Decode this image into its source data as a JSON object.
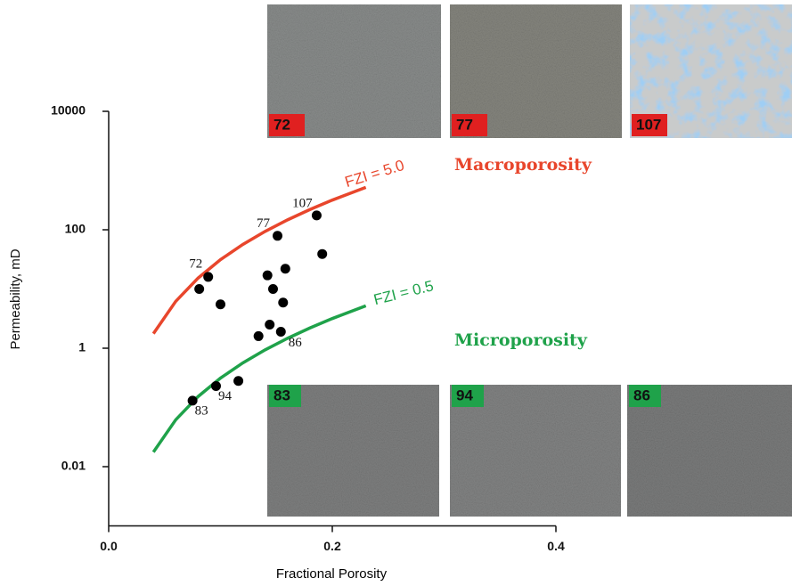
{
  "chart_data": {
    "type": "scatter",
    "xlabel": "Fractional Porosity",
    "ylabel": "Permeability, mD",
    "xlim": [
      0,
      0.4
    ],
    "xticks": [
      {
        "value": 0,
        "label": "0.0"
      },
      0.2,
      0.4
    ],
    "ylim": [
      0.001,
      10000
    ],
    "yticks": [
      0.01,
      1,
      100,
      10000
    ],
    "log_y": true,
    "points": {
      "color": "#000000",
      "x": [
        0.089,
        0.081,
        0.1,
        0.151,
        0.186,
        0.191,
        0.158,
        0.142,
        0.147,
        0.156,
        0.144,
        0.134,
        0.154,
        0.075,
        0.096,
        0.116
      ],
      "values": [
        16,
        10,
        5.5,
        79,
        175,
        39,
        22,
        17,
        10,
        5.9,
        2.5,
        1.6,
        1.9,
        0.13,
        0.23,
        0.28
      ],
      "point_labels": [
        "72",
        null,
        null,
        "77",
        "107",
        null,
        null,
        null,
        null,
        null,
        null,
        null,
        "86",
        "83",
        "94",
        null
      ]
    },
    "curves": [
      {
        "name": "FZI = 5.0",
        "color": "#e8462c",
        "x": [
          0.04,
          0.06,
          0.08,
          0.1,
          0.12,
          0.14,
          0.16,
          0.18,
          0.2,
          0.23
        ],
        "values": [
          1.76,
          6.2,
          15.3,
          31.3,
          56.6,
          94.1,
          147,
          220,
          317,
          520
        ]
      },
      {
        "name": "FZI = 0.5",
        "color": "#1fa24a",
        "x": [
          0.04,
          0.06,
          0.08,
          0.1,
          0.12,
          0.14,
          0.16,
          0.18,
          0.2,
          0.23
        ],
        "values": [
          0.0176,
          0.062,
          0.153,
          0.313,
          0.566,
          0.941,
          1.47,
          2.2,
          3.17,
          5.2
        ]
      }
    ],
    "annotations": [
      {
        "text": "Macroporosity",
        "color": "#e8462c"
      },
      {
        "text": "Microporosity",
        "color": "#1fa24a"
      }
    ],
    "thin_sections": {
      "top": [
        "72",
        "77",
        "107"
      ],
      "top_color": "#e02020",
      "bottom": [
        "83",
        "94",
        "86"
      ],
      "bottom_color": "#1fa24a"
    }
  }
}
